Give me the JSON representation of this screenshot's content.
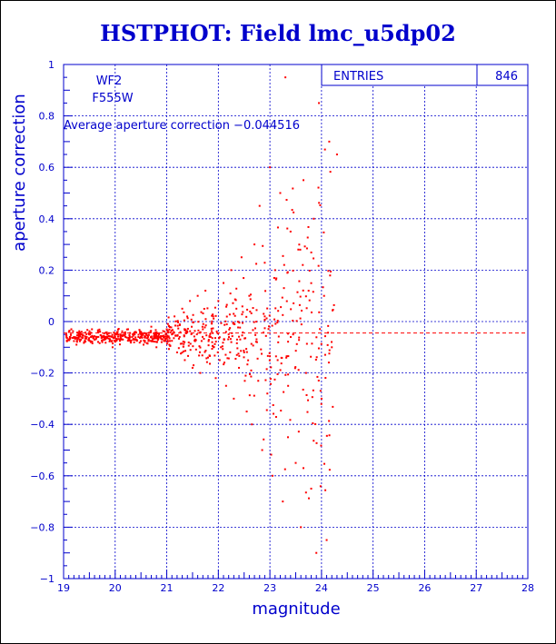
{
  "chart_data": {
    "type": "scatter",
    "title": "HSTPHOT: Field lmc_u5dp02",
    "xlabel": "magnitude",
    "ylabel": "aperture correction",
    "xlim": [
      19,
      28
    ],
    "ylim": [
      -1,
      1
    ],
    "x_ticks": [
      19,
      20,
      21,
      22,
      23,
      24,
      25,
      26,
      27,
      28
    ],
    "y_ticks": [
      -1,
      -0.8,
      -0.6,
      -0.4,
      -0.2,
      0,
      0.2,
      0.4,
      0.6,
      0.8,
      1
    ],
    "x_tick_labels": [
      "19",
      "20",
      "21",
      "22",
      "23",
      "24",
      "25",
      "26",
      "27",
      "28"
    ],
    "y_tick_labels": [
      "−1",
      "−0.8",
      "−0.6",
      "−0.4",
      "−0.2",
      "0",
      "0.2",
      "0.4",
      "0.6",
      "0.8",
      "1"
    ],
    "grid": true,
    "legend": "none",
    "annotations": {
      "chip": "WF2",
      "filter": "F555W",
      "average_text": "Average aperture correction −0.044516"
    },
    "stats_box": {
      "label": "ENTRIES",
      "value": "846",
      "placement": "top-right"
    },
    "reference_line": {
      "y": -0.044516,
      "style": "dashed"
    },
    "series": [
      {
        "n_points": 846,
        "points_note": "dense band near y≈-0.06 for x 19–21, spreading widely between x 21.5 and 24.2",
        "color": "#ff0000",
        "sample_points": [
          [
            19.05,
            -0.05
          ],
          [
            19.1,
            -0.07
          ],
          [
            19.15,
            -0.03
          ],
          [
            19.2,
            -0.06
          ],
          [
            19.25,
            -0.09
          ],
          [
            19.3,
            -0.05
          ],
          [
            19.35,
            -0.04
          ],
          [
            19.4,
            -0.08
          ],
          [
            19.45,
            -0.06
          ],
          [
            19.5,
            -0.05
          ],
          [
            19.55,
            -0.03
          ],
          [
            19.6,
            -0.07
          ],
          [
            19.65,
            -0.06
          ],
          [
            19.7,
            -0.04
          ],
          [
            19.75,
            -0.08
          ],
          [
            19.8,
            -0.06
          ],
          [
            19.85,
            -0.05
          ],
          [
            19.9,
            -0.07
          ],
          [
            19.95,
            -0.1
          ],
          [
            20.0,
            -0.06
          ],
          [
            20.05,
            -0.04
          ],
          [
            20.1,
            -0.05
          ],
          [
            20.15,
            -0.07
          ],
          [
            20.2,
            -0.06
          ],
          [
            20.25,
            -0.03
          ],
          [
            20.3,
            -0.08
          ],
          [
            20.35,
            -0.05
          ],
          [
            20.4,
            -0.07
          ],
          [
            20.45,
            -0.06
          ],
          [
            20.5,
            -0.04
          ],
          [
            20.55,
            -0.09
          ],
          [
            20.6,
            -0.05
          ],
          [
            20.65,
            -0.07
          ],
          [
            20.7,
            -0.02
          ],
          [
            20.75,
            -0.06
          ],
          [
            20.8,
            -0.1
          ],
          [
            20.85,
            -0.05
          ],
          [
            20.9,
            -0.08
          ],
          [
            20.95,
            -0.06
          ],
          [
            21.0,
            -0.03
          ],
          [
            21.05,
            -0.09
          ],
          [
            21.1,
            -0.05
          ],
          [
            21.15,
            0.02
          ],
          [
            21.2,
            -0.12
          ],
          [
            21.25,
            -0.06
          ],
          [
            21.3,
            0.05
          ],
          [
            21.35,
            -0.15
          ],
          [
            21.4,
            -0.04
          ],
          [
            21.45,
            0.08
          ],
          [
            21.5,
            -0.18
          ],
          [
            21.55,
            -0.07
          ],
          [
            21.6,
            0.1
          ],
          [
            21.65,
            -0.2
          ],
          [
            21.7,
            -0.03
          ],
          [
            21.75,
            0.12
          ],
          [
            21.8,
            -0.14
          ],
          [
            21.85,
            -0.06
          ],
          [
            21.9,
            0.02
          ],
          [
            21.95,
            -0.22
          ],
          [
            22.0,
            0.08
          ],
          [
            22.05,
            -0.1
          ],
          [
            22.1,
            0.15
          ],
          [
            22.15,
            -0.25
          ],
          [
            22.2,
            -0.05
          ],
          [
            22.25,
            0.2
          ],
          [
            22.3,
            -0.3
          ],
          [
            22.35,
            0.05
          ],
          [
            22.4,
            -0.18
          ],
          [
            22.45,
            0.25
          ],
          [
            22.5,
            -0.12
          ],
          [
            22.55,
            -0.35
          ],
          [
            22.6,
            0.1
          ],
          [
            22.65,
            -0.4
          ],
          [
            22.7,
            0.3
          ],
          [
            22.75,
            -0.08
          ],
          [
            22.8,
            0.45
          ],
          [
            22.85,
            -0.5
          ],
          [
            22.9,
            0.02
          ],
          [
            22.95,
            -0.28
          ],
          [
            23.0,
            0.6
          ],
          [
            23.05,
            -0.6
          ],
          [
            23.1,
            0.2
          ],
          [
            23.15,
            -0.15
          ],
          [
            23.2,
            0.5
          ],
          [
            23.25,
            -0.7
          ],
          [
            23.3,
            0.95
          ],
          [
            23.35,
            -0.45
          ],
          [
            23.4,
            0.35
          ],
          [
            23.45,
            -0.05
          ],
          [
            23.5,
            -0.55
          ],
          [
            23.55,
            0.28
          ],
          [
            23.6,
            -0.8
          ],
          [
            23.65,
            0.55
          ],
          [
            23.7,
            -0.2
          ],
          [
            23.75,
            0.12
          ],
          [
            23.8,
            -0.65
          ],
          [
            23.85,
            0.4
          ],
          [
            23.9,
            -0.9
          ],
          [
            23.95,
            0.85
          ],
          [
            24.0,
            -0.3
          ],
          [
            24.05,
            0.1
          ],
          [
            24.1,
            -0.85
          ],
          [
            24.15,
            0.7
          ],
          [
            24.2,
            -0.1
          ],
          [
            24.3,
            0.65
          ]
        ]
      }
    ]
  }
}
